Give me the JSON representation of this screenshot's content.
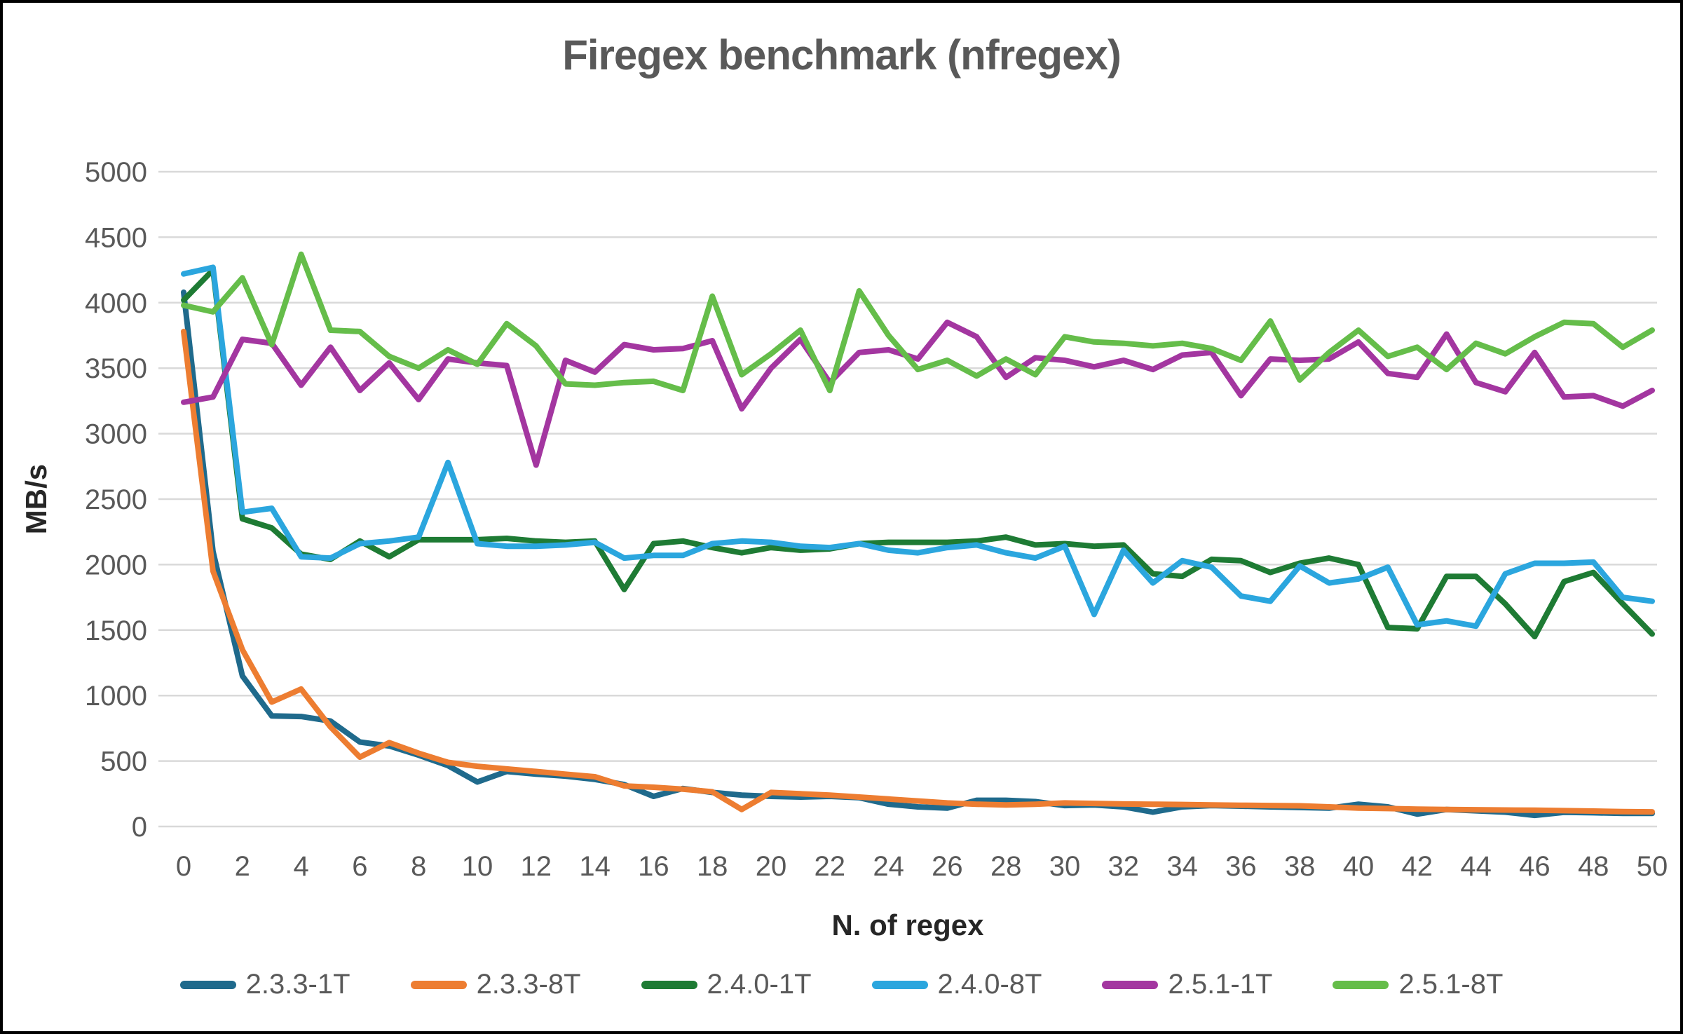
{
  "title": "Firegex benchmark (nfregex)",
  "colors": {
    "title_text": "#595959",
    "tick_text": "#595959",
    "axis_title_text": "#262626",
    "gridline": "#d9d9d9",
    "background": "#ffffff",
    "frame_border": "#000000"
  },
  "chart_data": {
    "type": "line",
    "title": "Firegex benchmark (nfregex)",
    "xlabel": "N. of regex",
    "ylabel": "MB/s",
    "xlim": [
      0,
      50
    ],
    "ylim": [
      0,
      5000
    ],
    "y_ticks": [
      0,
      500,
      1000,
      1500,
      2000,
      2500,
      3000,
      3500,
      4000,
      4500,
      5000
    ],
    "y_tick_labels": [
      "0",
      "500",
      "1000",
      "1500",
      "2000",
      "2500",
      "3000",
      "3500",
      "4000",
      "4500",
      "5000"
    ],
    "x_ticks": [
      0,
      2,
      4,
      6,
      8,
      10,
      12,
      14,
      16,
      18,
      20,
      22,
      24,
      26,
      28,
      30,
      32,
      34,
      36,
      38,
      40,
      42,
      44,
      46,
      48,
      50
    ],
    "x_tick_labels": [
      "0",
      "2",
      "4",
      "6",
      "8",
      "10",
      "12",
      "14",
      "16",
      "18",
      "20",
      "22",
      "24",
      "26",
      "28",
      "30",
      "32",
      "34",
      "36",
      "38",
      "40",
      "42",
      "44",
      "46",
      "48",
      "50"
    ],
    "grid": "horizontal",
    "legend_position": "bottom",
    "x": [
      0,
      1,
      2,
      3,
      4,
      5,
      6,
      7,
      8,
      9,
      10,
      11,
      12,
      13,
      14,
      15,
      16,
      17,
      18,
      19,
      20,
      21,
      22,
      23,
      24,
      25,
      26,
      27,
      28,
      29,
      30,
      31,
      32,
      33,
      34,
      35,
      36,
      37,
      38,
      39,
      40,
      41,
      42,
      43,
      44,
      45,
      46,
      47,
      48,
      49,
      50
    ],
    "series": [
      {
        "name": "2.3.3-1T",
        "color": "#1f6a8c",
        "values": [
          4080,
          2100,
          1150,
          845,
          840,
          805,
          645,
          615,
          545,
          465,
          340,
          420,
          400,
          385,
          360,
          320,
          230,
          290,
          260,
          240,
          230,
          225,
          230,
          220,
          170,
          150,
          140,
          200,
          200,
          190,
          160,
          165,
          150,
          110,
          150,
          160,
          155,
          150,
          145,
          140,
          170,
          150,
          95,
          130,
          120,
          110,
          85,
          108,
          105,
          100,
          100
        ]
      },
      {
        "name": "2.3.3-8T",
        "color": "#ed7d31",
        "values": [
          3780,
          1950,
          1350,
          950,
          1050,
          760,
          530,
          640,
          560,
          490,
          460,
          440,
          420,
          400,
          380,
          310,
          300,
          285,
          265,
          130,
          260,
          250,
          240,
          225,
          210,
          195,
          180,
          170,
          165,
          170,
          180,
          176,
          172,
          170,
          168,
          165,
          162,
          160,
          158,
          150,
          140,
          137,
          133,
          130,
          128,
          126,
          124,
          121,
          118,
          114,
          112
        ]
      },
      {
        "name": "2.4.0-1T",
        "color": "#1e7b34",
        "values": [
          4020,
          4250,
          2350,
          2280,
          2080,
          2040,
          2180,
          2060,
          2190,
          2190,
          2190,
          2200,
          2180,
          2170,
          2180,
          1810,
          2160,
          2180,
          2130,
          2090,
          2130,
          2110,
          2120,
          2160,
          2170,
          2170,
          2170,
          2180,
          2210,
          2150,
          2160,
          2140,
          2150,
          1930,
          1910,
          2040,
          2030,
          1940,
          2010,
          2050,
          2000,
          1520,
          1510,
          1910,
          1910,
          1700,
          1450,
          1870,
          1940,
          1700,
          1470
        ]
      },
      {
        "name": "2.4.0-8T",
        "color": "#2ba6de",
        "values": [
          4220,
          4270,
          2400,
          2430,
          2060,
          2050,
          2160,
          2180,
          2210,
          2780,
          2160,
          2140,
          2140,
          2150,
          2170,
          2050,
          2070,
          2070,
          2160,
          2180,
          2170,
          2140,
          2130,
          2160,
          2110,
          2090,
          2130,
          2150,
          2090,
          2050,
          2140,
          1620,
          2110,
          1860,
          2030,
          1980,
          1760,
          1720,
          1990,
          1860,
          1890,
          1980,
          1540,
          1570,
          1530,
          1930,
          2010,
          2010,
          2020,
          1750,
          1720
        ]
      },
      {
        "name": "2.5.1-1T",
        "color": "#a336a0",
        "values": [
          3240,
          3280,
          3720,
          3690,
          3370,
          3660,
          3330,
          3540,
          3260,
          3570,
          3540,
          3520,
          2760,
          3560,
          3470,
          3680,
          3640,
          3650,
          3710,
          3190,
          3500,
          3720,
          3390,
          3620,
          3640,
          3570,
          3850,
          3740,
          3430,
          3580,
          3560,
          3510,
          3560,
          3490,
          3600,
          3620,
          3290,
          3570,
          3560,
          3570,
          3700,
          3460,
          3430,
          3760,
          3390,
          3320,
          3620,
          3280,
          3290,
          3210,
          3330
        ]
      },
      {
        "name": "2.5.1-8T",
        "color": "#65bd4a",
        "values": [
          3980,
          3930,
          4190,
          3680,
          4370,
          3790,
          3780,
          3590,
          3500,
          3640,
          3530,
          3840,
          3670,
          3380,
          3370,
          3390,
          3400,
          3330,
          4050,
          3450,
          3610,
          3790,
          3330,
          4090,
          3750,
          3490,
          3560,
          3440,
          3570,
          3450,
          3740,
          3700,
          3690,
          3670,
          3690,
          3650,
          3560,
          3860,
          3410,
          3620,
          3790,
          3590,
          3660,
          3490,
          3690,
          3610,
          3740,
          3850,
          3840,
          3660,
          3790
        ]
      }
    ]
  },
  "legend": {
    "items": [
      {
        "label": "2.3.3-1T",
        "color": "#1f6a8c"
      },
      {
        "label": "2.3.3-8T",
        "color": "#ed7d31"
      },
      {
        "label": "2.4.0-1T",
        "color": "#1e7b34"
      },
      {
        "label": "2.4.0-8T",
        "color": "#2ba6de"
      },
      {
        "label": "2.5.1-1T",
        "color": "#a336a0"
      },
      {
        "label": "2.5.1-8T",
        "color": "#65bd4a"
      }
    ]
  }
}
